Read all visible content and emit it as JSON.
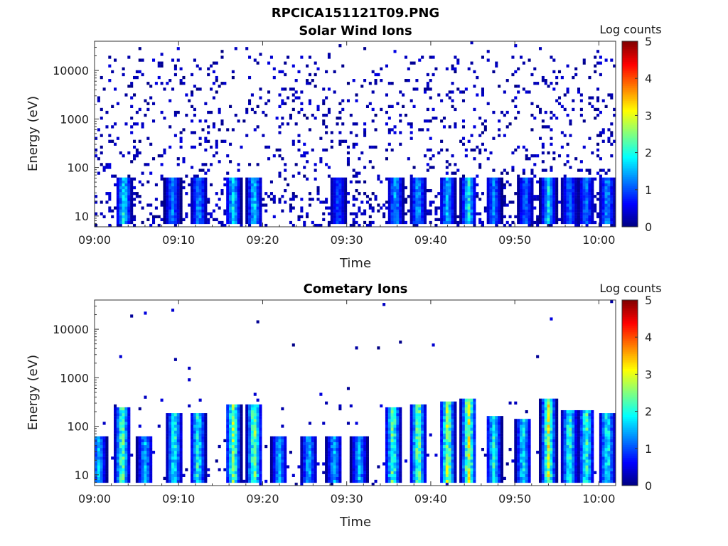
{
  "figure": {
    "title": "RPCICA151121T09.PNG"
  },
  "colors": {
    "colormap": [
      "#000080",
      "#0000ff",
      "#0080ff",
      "#00ffff",
      "#80ff80",
      "#ffff00",
      "#ff8000",
      "#ff0000",
      "#800000"
    ]
  },
  "chart_data": [
    {
      "type": "heatmap",
      "title": "Solar Wind Ions",
      "xlabel": "Time",
      "ylabel": "Energy (eV)",
      "x_ticks": [
        "09:00",
        "09:10",
        "09:20",
        "09:30",
        "09:40",
        "09:50",
        "10:00"
      ],
      "x_range": [
        "09:00",
        "10:02"
      ],
      "y_scale": "log",
      "y_range": [
        6,
        40000
      ],
      "y_ticks": [
        "10",
        "100",
        "1000",
        "10000"
      ],
      "colorbar": {
        "label": "Log counts",
        "range": [
          0,
          5
        ],
        "ticks": [
          "0",
          "1",
          "2",
          "3",
          "4",
          "5"
        ]
      },
      "bursts": [
        {
          "t": 3.5,
          "level": 2.4
        },
        {
          "t": 9.3,
          "level": 1.6
        },
        {
          "t": 12.4,
          "level": 1.8
        },
        {
          "t": 16.5,
          "level": 2.2
        },
        {
          "t": 19.0,
          "level": 2.2
        },
        {
          "t": 29.0,
          "level": 1.3
        },
        {
          "t": 35.8,
          "level": 1.9
        },
        {
          "t": 38.5,
          "level": 1.9
        },
        {
          "t": 42.0,
          "level": 2.0
        },
        {
          "t": 44.5,
          "level": 2.4
        },
        {
          "t": 47.5,
          "level": 1.6
        },
        {
          "t": 51.3,
          "level": 1.5
        },
        {
          "t": 54.0,
          "level": 2.2
        },
        {
          "t": 56.5,
          "level": 1.5
        },
        {
          "t": 58.5,
          "level": 1.6
        },
        {
          "t": 61.0,
          "level": 1.8
        }
      ]
    },
    {
      "type": "heatmap",
      "title": "Cometary Ions",
      "xlabel": "Time",
      "ylabel": "Energy (eV)",
      "x_ticks": [
        "09:00",
        "09:10",
        "09:20",
        "09:30",
        "09:40",
        "09:50",
        "10:00"
      ],
      "x_range": [
        "09:00",
        "10:02"
      ],
      "y_scale": "log",
      "y_range": [
        6,
        40000
      ],
      "y_ticks": [
        "10",
        "100",
        "1000",
        "10000"
      ],
      "colorbar": {
        "label": "Log counts",
        "range": [
          0,
          5
        ],
        "ticks": [
          "0",
          "1",
          "2",
          "3",
          "4",
          "5"
        ]
      },
      "bursts": [
        {
          "t": 0.5,
          "level": 2.0
        },
        {
          "t": 3.3,
          "level": 3.0
        },
        {
          "t": 6.0,
          "level": 2.0
        },
        {
          "t": 9.5,
          "level": 2.6
        },
        {
          "t": 12.3,
          "level": 2.6
        },
        {
          "t": 16.5,
          "level": 3.2
        },
        {
          "t": 19.0,
          "level": 3.2
        },
        {
          "t": 22.0,
          "level": 2.0
        },
        {
          "t": 25.5,
          "level": 2.0
        },
        {
          "t": 28.5,
          "level": 2.0
        },
        {
          "t": 31.5,
          "level": 2.0
        },
        {
          "t": 35.5,
          "level": 3.0
        },
        {
          "t": 38.5,
          "level": 3.2
        },
        {
          "t": 42.0,
          "level": 3.4
        },
        {
          "t": 44.5,
          "level": 3.6
        },
        {
          "t": 47.5,
          "level": 2.5
        },
        {
          "t": 51.0,
          "level": 2.4
        },
        {
          "t": 54.0,
          "level": 3.5
        },
        {
          "t": 56.5,
          "level": 2.8
        },
        {
          "t": 58.5,
          "level": 2.8
        },
        {
          "t": 61.0,
          "level": 2.6
        }
      ]
    }
  ]
}
